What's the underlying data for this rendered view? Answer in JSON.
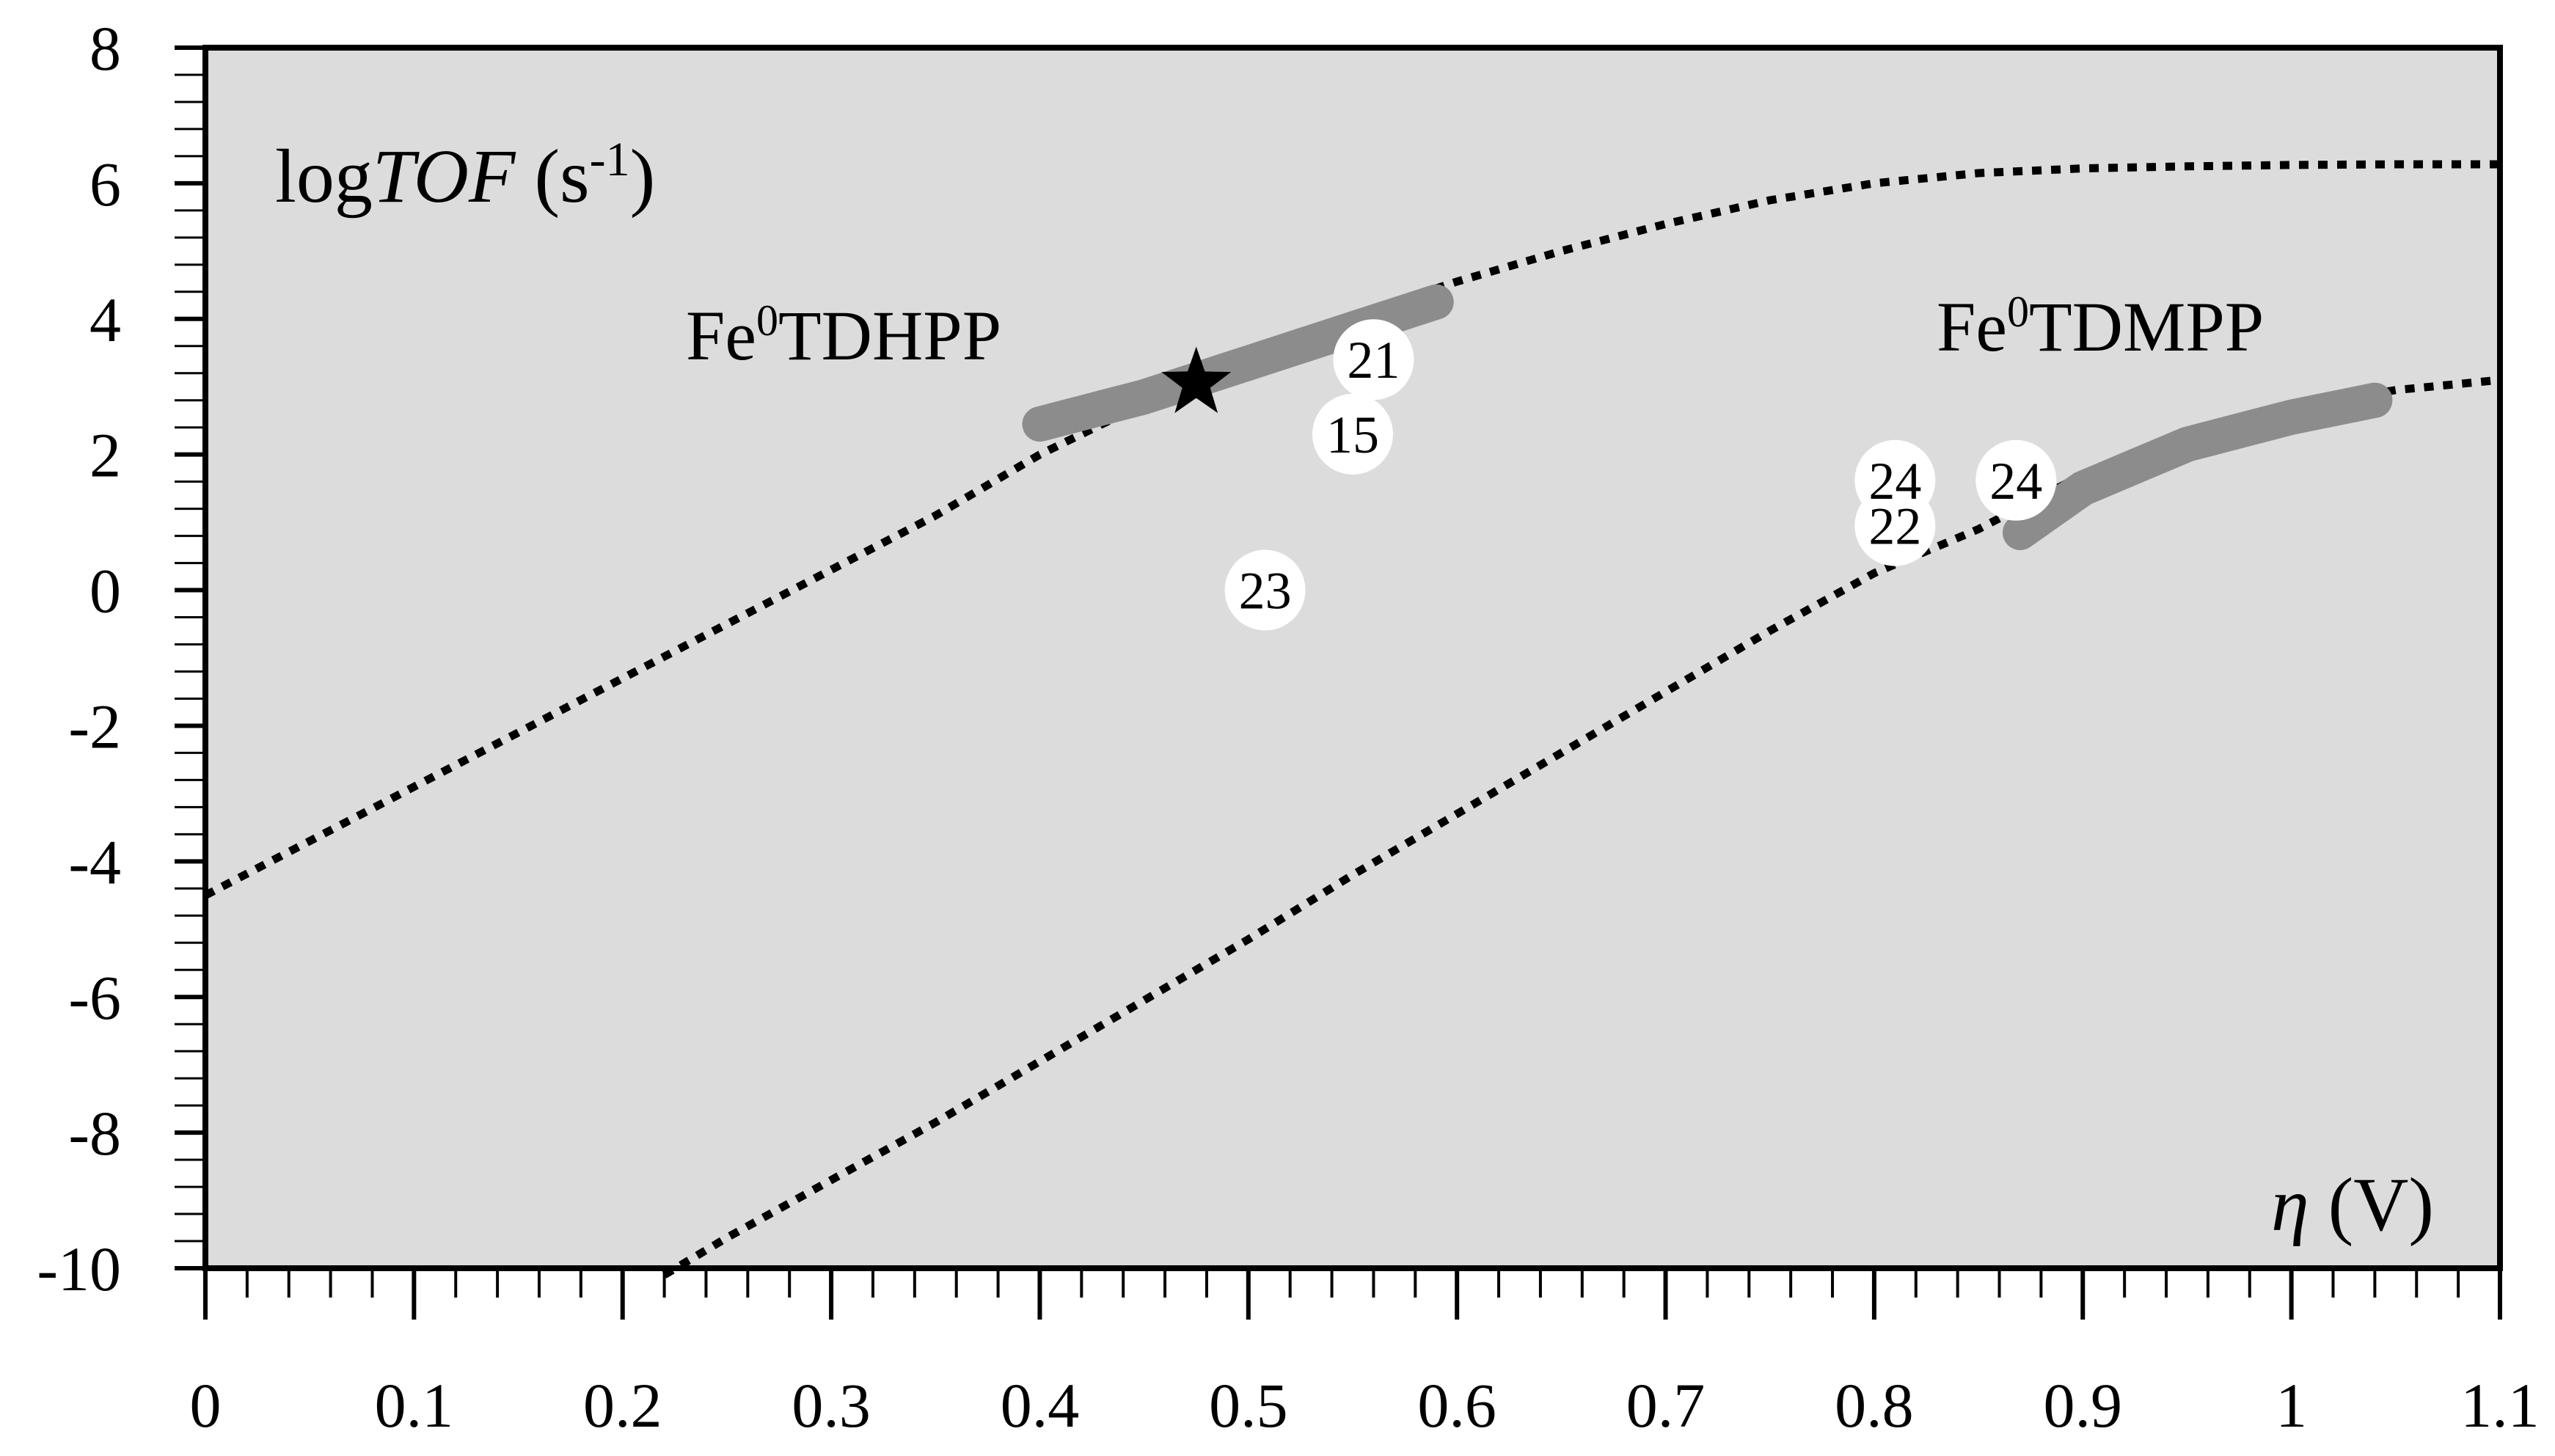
{
  "chart_data": {
    "type": "line",
    "ylabel": {
      "prefix": "log",
      "italic": "TOF",
      "unit_base": " (s",
      "unit_sup": "-1",
      "unit_close": ")"
    },
    "xlabel": {
      "italic": "η",
      "unit": " (V)"
    },
    "xlim": [
      0,
      1.1
    ],
    "ylim": [
      -10,
      8
    ],
    "x_ticks": [
      "0",
      "0.1",
      "0.2",
      "0.3",
      "0.4",
      "0.5",
      "0.6",
      "0.7",
      "0.8",
      "0.9",
      "1",
      "1.1"
    ],
    "y_ticks": [
      "8",
      "6",
      "4",
      "2",
      "0",
      "-2",
      "-4",
      "-6",
      "-8",
      "-10"
    ],
    "grid": false,
    "background": "#dcdcdc",
    "curve_color": "#000000",
    "highlight_color": "#8c8c8c",
    "series": [
      {
        "label_base": "Fe",
        "label_sup": "0",
        "label_rest": "TDHPP",
        "x": [
          0.0,
          0.05,
          0.1,
          0.15,
          0.2,
          0.25,
          0.3,
          0.35,
          0.4,
          0.45,
          0.5,
          0.55,
          0.6,
          0.65,
          0.7,
          0.75,
          0.8,
          0.85,
          0.9,
          0.95,
          1.0,
          1.05,
          1.1
        ],
        "y": [
          -4.5,
          -3.7,
          -2.9,
          -2.1,
          -1.3,
          -0.5,
          0.3,
          1.1,
          2.0,
          2.75,
          3.45,
          4.05,
          4.55,
          5.0,
          5.4,
          5.75,
          6.0,
          6.15,
          6.22,
          6.25,
          6.27,
          6.28,
          6.28
        ],
        "highlight": {
          "x": [
            0.4,
            0.45,
            0.5,
            0.55,
            0.59
          ],
          "y": [
            2.45,
            2.85,
            3.35,
            3.85,
            4.25
          ]
        }
      },
      {
        "label_base": "Fe",
        "label_sup": "0",
        "label_rest": "TDMPP",
        "x": [
          0.22,
          0.25,
          0.3,
          0.35,
          0.4,
          0.45,
          0.5,
          0.55,
          0.6,
          0.65,
          0.7,
          0.75,
          0.8,
          0.85,
          0.9,
          0.95,
          1.0,
          1.05,
          1.1
        ],
        "y": [
          -10.1,
          -9.55,
          -8.7,
          -7.85,
          -6.95,
          -6.05,
          -5.15,
          -4.2,
          -3.3,
          -2.4,
          -1.5,
          -0.6,
          0.25,
          0.9,
          1.7,
          2.3,
          2.7,
          2.95,
          3.1
        ],
        "highlight": {
          "x": [
            0.87,
            0.9,
            0.95,
            1.0,
            1.04
          ],
          "y": [
            0.85,
            1.5,
            2.15,
            2.55,
            2.8
          ]
        }
      }
    ],
    "star": {
      "x": 0.475,
      "y": 3.05
    },
    "markers": [
      {
        "label": "21",
        "x": 0.56,
        "y": 3.4
      },
      {
        "label": "15",
        "x": 0.55,
        "y": 2.3
      },
      {
        "label": "23",
        "x": 0.508,
        "y": 0.0
      },
      {
        "label": "24",
        "x": 0.81,
        "y": 1.62
      },
      {
        "label": "22",
        "x": 0.81,
        "y": 0.95
      },
      {
        "label": "24",
        "x": 0.868,
        "y": 1.62
      }
    ]
  }
}
